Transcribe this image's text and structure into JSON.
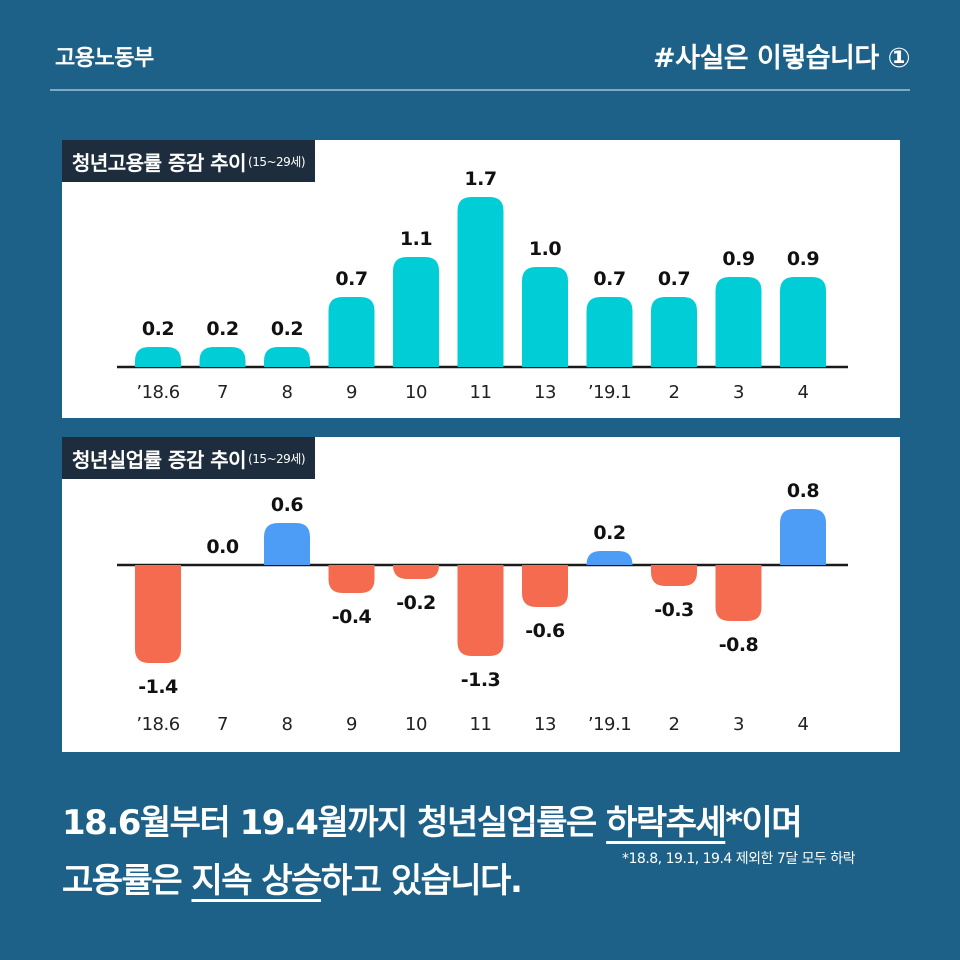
{
  "header": {
    "ministry": "고용노동부",
    "tagline": "#사실은 이렇습니다 ①"
  },
  "chart_data": [
    {
      "type": "bar",
      "title": "청년고용률 증감 추이",
      "title_note": "(15~29세)",
      "categories": [
        "’18.6",
        "7",
        "8",
        "9",
        "10",
        "11",
        "13",
        "’19.1",
        "2",
        "3",
        "4"
      ],
      "values": [
        0.2,
        0.2,
        0.2,
        0.7,
        1.1,
        1.7,
        1.0,
        0.7,
        0.7,
        0.9,
        0.9
      ],
      "value_labels": [
        "0.2",
        "0.2",
        "0.2",
        "0.7",
        "1.1",
        "1.7",
        "1.0",
        "0.7",
        "0.7",
        "0.9",
        "0.9"
      ],
      "ylim": [
        0,
        1.8
      ],
      "colors": {
        "positive": "#00cdd6"
      }
    },
    {
      "type": "bar",
      "title": "청년실업률 증감 추이",
      "title_note": "(15~29세)",
      "categories": [
        "’18.6",
        "7",
        "8",
        "9",
        "10",
        "11",
        "13",
        "’19.1",
        "2",
        "3",
        "4"
      ],
      "values": [
        -1.4,
        0.0,
        0.6,
        -0.4,
        -0.2,
        -1.3,
        -0.6,
        0.2,
        -0.3,
        -0.8,
        0.8
      ],
      "value_labels": [
        "-1.4",
        "0.0",
        "0.6",
        "-0.4",
        "-0.2",
        "-1.3",
        "-0.6",
        "0.2",
        "-0.3",
        "-0.8",
        "0.8"
      ],
      "ylim": [
        -1.5,
        0.9
      ],
      "colors": {
        "positive": "#4d9cf5",
        "negative": "#f56b50"
      }
    }
  ],
  "summary": {
    "line1_a": "18.6월부터 19.4월까지 청년실업률은 ",
    "line1_u": "하락추세",
    "line1_b": "*이며",
    "line2_a": "고용률은 ",
    "line2_u": "지속 상승",
    "line2_b": "하고 있습니다.",
    "footnote": "*18.8, 19.1, 19.4 제외한 7달 모두 하락"
  }
}
